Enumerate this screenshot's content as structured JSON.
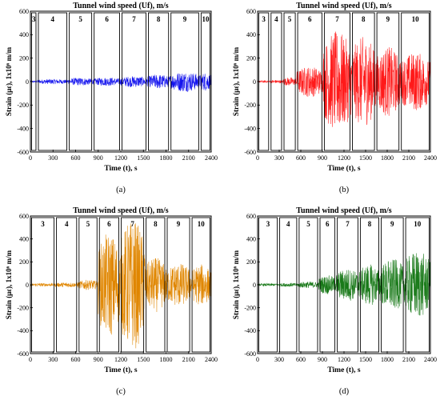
{
  "chart_data": [
    {
      "type": "line",
      "panel": "(a)",
      "title": "Tunnel wind speed (Uf), m/s",
      "xlabel": "Time (t), s",
      "ylabel": "Strain (με), 1x10⁶ m/m",
      "xlim": [
        0,
        2400
      ],
      "ylim": [
        -600,
        600
      ],
      "xticks": [
        0,
        300,
        600,
        900,
        1200,
        1500,
        1800,
        2100,
        2400
      ],
      "yticks": [
        -600,
        -400,
        -200,
        0,
        200,
        400,
        600
      ],
      "color": "#1414ee",
      "stage_labels": [
        "3",
        "4",
        "5",
        "6",
        "7",
        "8",
        "9",
        "10"
      ],
      "stage_boundaries_s": [
        0,
        90,
        500,
        830,
        1200,
        1550,
        1850,
        2250,
        2400
      ],
      "series": [
        {
          "x": [
            0,
            90,
            500,
            830,
            1200,
            1550,
            1850,
            2250,
            2400
          ],
          "amplitude": [
            6,
            18,
            28,
            30,
            40,
            52,
            72,
            66,
            60
          ]
        }
      ]
    },
    {
      "type": "line",
      "panel": "(b)",
      "title": "Tunnel wind speed (Uf), m/s",
      "xlabel": "Time (t), s",
      "ylabel": "Strain (με), 1x10⁶ m/m",
      "xlim": [
        0,
        2400
      ],
      "ylim": [
        -600,
        600
      ],
      "xticks": [
        0,
        300,
        600,
        900,
        1200,
        1500,
        1800,
        2100,
        2400
      ],
      "yticks": [
        -600,
        -400,
        -200,
        0,
        200,
        400,
        600
      ],
      "color": "#ff1a1a",
      "stage_labels": [
        "3",
        "4",
        "5",
        "6",
        "7",
        "8",
        "9",
        "10"
      ],
      "stage_boundaries_s": [
        0,
        170,
        350,
        540,
        910,
        1300,
        1640,
        1980,
        2400
      ],
      "series": [
        {
          "x": [
            0,
            170,
            350,
            540,
            910,
            1300,
            1640,
            1980,
            2400
          ],
          "amplitude": [
            8,
            12,
            30,
            110,
            360,
            320,
            250,
            210,
            190
          ]
        }
      ]
    },
    {
      "type": "line",
      "panel": "(c)",
      "title": "Tunnel wind speed (Uf), m/s",
      "xlabel": "Time (t), s",
      "ylabel": "Strain (με), 1x10⁶ m/m",
      "xlim": [
        0,
        2400
      ],
      "ylim": [
        -600,
        600
      ],
      "xticks": [
        0,
        300,
        600,
        900,
        1200,
        1500,
        1800,
        2100,
        2400
      ],
      "yticks": [
        -600,
        -400,
        -200,
        0,
        200,
        400,
        600
      ],
      "color": "#e08600",
      "stage_labels": [
        "3",
        "4",
        "5",
        "6",
        "7",
        "8",
        "9",
        "10"
      ],
      "stage_boundaries_s": [
        0,
        330,
        630,
        900,
        1190,
        1520,
        1800,
        2130,
        2400
      ],
      "series": [
        {
          "x": [
            0,
            330,
            630,
            900,
            1190,
            1520,
            1800,
            2130,
            2400
          ],
          "amplitude": [
            12,
            18,
            36,
            380,
            480,
            200,
            160,
            150,
            160
          ]
        }
      ]
    },
    {
      "type": "line",
      "panel": "(d)",
      "title": "Tunnel wind speed (Uf), m/s",
      "xlabel": "Time (t), s",
      "ylabel": "Strain (με), 1x10⁶ m/m",
      "xlim": [
        0,
        2400
      ],
      "ylim": [
        -600,
        600
      ],
      "xticks": [
        0,
        300,
        600,
        900,
        1200,
        1500,
        1800,
        2100,
        2400
      ],
      "yticks": [
        -600,
        -400,
        -200,
        0,
        200,
        400,
        600
      ],
      "color": "#1a7a1a",
      "stage_labels": [
        "3",
        "4",
        "5",
        "6",
        "7",
        "8",
        "9",
        "10"
      ],
      "stage_boundaries_s": [
        0,
        290,
        560,
        850,
        1090,
        1410,
        1700,
        2040,
        2400
      ],
      "series": [
        {
          "x": [
            0,
            290,
            560,
            850,
            1090,
            1410,
            1700,
            2040,
            2400
          ],
          "amplitude": [
            10,
            14,
            24,
            70,
            120,
            150,
            190,
            250,
            420
          ]
        }
      ]
    }
  ]
}
